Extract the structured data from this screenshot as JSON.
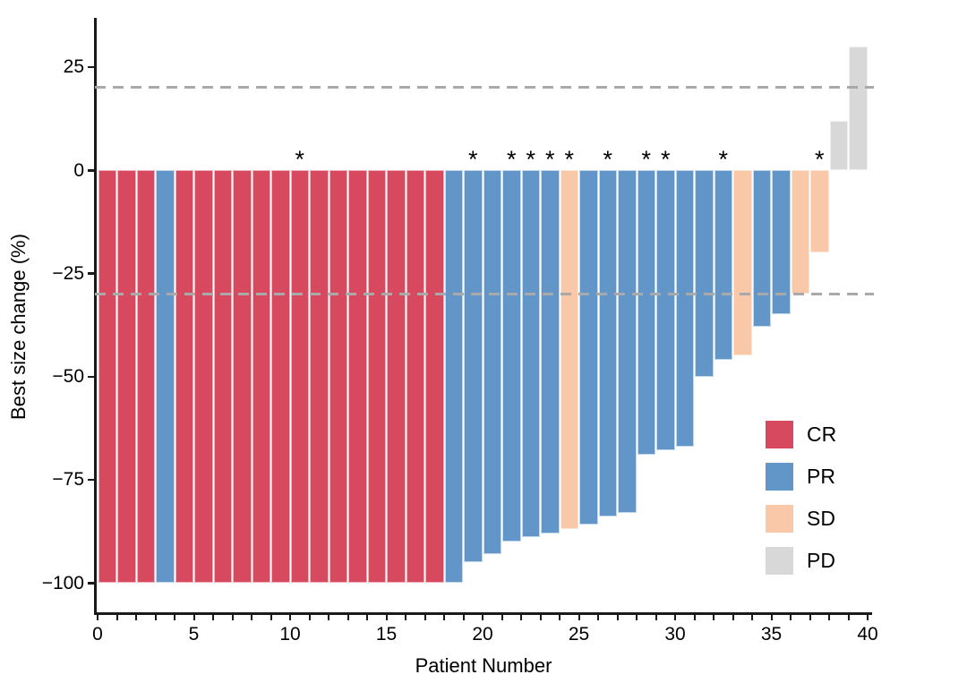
{
  "chart_data": {
    "type": "bar",
    "subtype": "waterfall",
    "title": "",
    "xlabel": "Patient Number",
    "ylabel": "Best size change (%)",
    "xlim": [
      0,
      41
    ],
    "ylim": [
      -107,
      37
    ],
    "grid": "off",
    "x_major_ticks": [
      0,
      5,
      10,
      15,
      20,
      25,
      30,
      35,
      40
    ],
    "x_minor_tick_every": 1,
    "y_ticks": [
      {
        "value": 25,
        "label": "25"
      },
      {
        "value": 0,
        "label": "0"
      },
      {
        "value": -25,
        "label": "−25"
      },
      {
        "value": -50,
        "label": "−50"
      },
      {
        "value": -75,
        "label": "−75"
      },
      {
        "value": -100,
        "label": "−100"
      }
    ],
    "reference_lines": [
      {
        "y": 20,
        "style": "dashed",
        "color": "#A9A9A9"
      },
      {
        "y": -30,
        "style": "dashed",
        "color": "#A9A9A9"
      }
    ],
    "annotation_symbol": "*",
    "responses": {
      "CR": {
        "fill": "#D6495F",
        "edge": "#F0B1BC"
      },
      "PR": {
        "fill": "#6396C8",
        "edge": "#C4D8EC"
      },
      "SD": {
        "fill": "#F8C8A9",
        "edge": "#FBE7D7"
      },
      "PD": {
        "fill": "#D8D8D8",
        "edge": "#EFEFEF"
      }
    },
    "legend": {
      "position": "right-middle",
      "entries": [
        {
          "key": "CR",
          "label": "CR"
        },
        {
          "key": "PR",
          "label": "PR"
        },
        {
          "key": "SD",
          "label": "SD"
        },
        {
          "key": "PD",
          "label": "PD"
        }
      ]
    },
    "patients": [
      {
        "n": 1,
        "response": "CR",
        "value": -100,
        "star": false
      },
      {
        "n": 2,
        "response": "CR",
        "value": -100,
        "star": false
      },
      {
        "n": 3,
        "response": "CR",
        "value": -100,
        "star": false
      },
      {
        "n": 4,
        "response": "PR",
        "value": -100,
        "star": false
      },
      {
        "n": 5,
        "response": "CR",
        "value": -100,
        "star": false
      },
      {
        "n": 6,
        "response": "CR",
        "value": -100,
        "star": false
      },
      {
        "n": 7,
        "response": "CR",
        "value": -100,
        "star": false
      },
      {
        "n": 8,
        "response": "CR",
        "value": -100,
        "star": false
      },
      {
        "n": 9,
        "response": "CR",
        "value": -100,
        "star": false
      },
      {
        "n": 10,
        "response": "CR",
        "value": -100,
        "star": false
      },
      {
        "n": 11,
        "response": "CR",
        "value": -100,
        "star": true
      },
      {
        "n": 12,
        "response": "CR",
        "value": -100,
        "star": false
      },
      {
        "n": 13,
        "response": "CR",
        "value": -100,
        "star": false
      },
      {
        "n": 14,
        "response": "CR",
        "value": -100,
        "star": false
      },
      {
        "n": 15,
        "response": "CR",
        "value": -100,
        "star": false
      },
      {
        "n": 16,
        "response": "CR",
        "value": -100,
        "star": false
      },
      {
        "n": 17,
        "response": "CR",
        "value": -100,
        "star": false
      },
      {
        "n": 18,
        "response": "CR",
        "value": -100,
        "star": false
      },
      {
        "n": 19,
        "response": "PR",
        "value": -100,
        "star": false
      },
      {
        "n": 20,
        "response": "PR",
        "value": -95,
        "star": true
      },
      {
        "n": 21,
        "response": "PR",
        "value": -93,
        "star": false
      },
      {
        "n": 22,
        "response": "PR",
        "value": -90,
        "star": true
      },
      {
        "n": 23,
        "response": "PR",
        "value": -89,
        "star": true
      },
      {
        "n": 24,
        "response": "PR",
        "value": -88,
        "star": true
      },
      {
        "n": 25,
        "response": "SD",
        "value": -87,
        "star": true
      },
      {
        "n": 26,
        "response": "PR",
        "value": -86,
        "star": false
      },
      {
        "n": 27,
        "response": "PR",
        "value": -84,
        "star": true
      },
      {
        "n": 28,
        "response": "PR",
        "value": -83,
        "star": false
      },
      {
        "n": 29,
        "response": "PR",
        "value": -69,
        "star": true
      },
      {
        "n": 30,
        "response": "PR",
        "value": -68,
        "star": true
      },
      {
        "n": 31,
        "response": "PR",
        "value": -67,
        "star": false
      },
      {
        "n": 32,
        "response": "PR",
        "value": -50,
        "star": false
      },
      {
        "n": 33,
        "response": "PR",
        "value": -46,
        "star": true
      },
      {
        "n": 34,
        "response": "SD",
        "value": -45,
        "star": false
      },
      {
        "n": 35,
        "response": "PR",
        "value": -38,
        "star": false
      },
      {
        "n": 36,
        "response": "PR",
        "value": -35,
        "star": false
      },
      {
        "n": 37,
        "response": "SD",
        "value": -30,
        "star": false
      },
      {
        "n": 38,
        "response": "SD",
        "value": -20,
        "star": true
      },
      {
        "n": 39,
        "response": "PD",
        "value": 12,
        "star": false
      },
      {
        "n": 40,
        "response": "PD",
        "value": 30,
        "star": false
      }
    ]
  }
}
